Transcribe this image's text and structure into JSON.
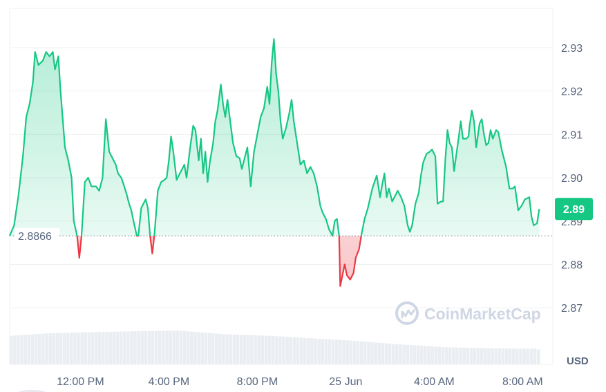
{
  "colors": {
    "up": "#16c784",
    "down": "#ea3943",
    "grid": "#eff2f5",
    "axis_text": "#58667e",
    "badge_bg": "#16c784",
    "volume": "#eaedf1",
    "watermark": "#cfd6e4"
  },
  "watermark": {
    "text": "CoinMarketCap",
    "icon": "coinmarketcap-logo-icon"
  },
  "currency_label": "USD",
  "baseline": {
    "label": "2.8866",
    "value": 2.8866
  },
  "current_price": {
    "label": "2.89",
    "value": 2.8928
  },
  "chart_data": {
    "type": "area",
    "title": "",
    "xlabel": "",
    "ylabel": "",
    "ylim": [
      2.8625,
      2.9375
    ],
    "y_ticks": [
      {
        "value": 2.93,
        "label": "2.93"
      },
      {
        "value": 2.92,
        "label": "2.92"
      },
      {
        "value": 2.91,
        "label": "2.91"
      },
      {
        "value": 2.9,
        "label": "2.90"
      },
      {
        "value": 2.89,
        "label": "2.89"
      },
      {
        "value": 2.88,
        "label": "2.88"
      },
      {
        "value": 2.87,
        "label": "2.87"
      }
    ],
    "x_ticks": [
      {
        "label": "12:00 PM",
        "hour": 12
      },
      {
        "label": "4:00 PM",
        "hour": 16
      },
      {
        "label": "8:00 PM",
        "hour": 20
      },
      {
        "label": "25 Jun",
        "hour": 24
      },
      {
        "label": "4:00 AM",
        "hour": 28
      },
      {
        "label": "8:00 AM",
        "hour": 32
      }
    ],
    "x_domain_hours": [
      8.8,
      33.3
    ],
    "grid": "horizontal",
    "series": [
      {
        "points": [
          [
            8.8,
            2.8866
          ],
          [
            9.0,
            2.889
          ],
          [
            9.2,
            2.896
          ],
          [
            9.4,
            2.905
          ],
          [
            9.55,
            2.914
          ],
          [
            9.7,
            2.917
          ],
          [
            9.85,
            2.922
          ],
          [
            9.95,
            2.929
          ],
          [
            10.1,
            2.926
          ],
          [
            10.3,
            2.927
          ],
          [
            10.45,
            2.929
          ],
          [
            10.6,
            2.928
          ],
          [
            10.75,
            2.929
          ],
          [
            10.85,
            2.925
          ],
          [
            11.0,
            2.928
          ],
          [
            11.1,
            2.92
          ],
          [
            11.3,
            2.907
          ],
          [
            11.45,
            2.904
          ],
          [
            11.6,
            2.9
          ],
          [
            11.7,
            2.89
          ],
          [
            11.85,
            2.8866
          ],
          [
            11.95,
            2.8815
          ],
          [
            12.05,
            2.8866
          ],
          [
            12.2,
            2.899
          ],
          [
            12.35,
            2.9
          ],
          [
            12.5,
            2.898
          ],
          [
            12.7,
            2.898
          ],
          [
            12.85,
            2.897
          ],
          [
            13.0,
            2.9
          ],
          [
            13.15,
            2.9135
          ],
          [
            13.3,
            2.906
          ],
          [
            13.45,
            2.9045
          ],
          [
            13.6,
            2.903
          ],
          [
            13.7,
            2.901
          ],
          [
            13.85,
            2.9
          ],
          [
            13.95,
            2.8985
          ],
          [
            14.1,
            2.896
          ],
          [
            14.2,
            2.894
          ],
          [
            14.3,
            2.8925
          ],
          [
            14.4,
            2.89
          ],
          [
            14.55,
            2.8866
          ],
          [
            14.62,
            2.8866
          ],
          [
            14.75,
            2.893
          ],
          [
            14.95,
            2.895
          ],
          [
            15.05,
            2.893
          ],
          [
            15.15,
            2.8866
          ],
          [
            15.25,
            2.8825
          ],
          [
            15.35,
            2.887
          ],
          [
            15.5,
            2.897
          ],
          [
            15.65,
            2.899
          ],
          [
            15.8,
            2.8995
          ],
          [
            15.9,
            2.9
          ],
          [
            16.0,
            2.904
          ],
          [
            16.1,
            2.9095
          ],
          [
            16.2,
            2.906
          ],
          [
            16.35,
            2.8995
          ],
          [
            16.5,
            2.901
          ],
          [
            16.7,
            2.903
          ],
          [
            16.8,
            2.9
          ],
          [
            16.95,
            2.9065
          ],
          [
            17.1,
            2.912
          ],
          [
            17.2,
            2.911
          ],
          [
            17.35,
            2.904
          ],
          [
            17.45,
            2.909
          ],
          [
            17.55,
            2.901
          ],
          [
            17.65,
            2.906
          ],
          [
            17.75,
            2.899
          ],
          [
            17.85,
            2.9035
          ],
          [
            18.0,
            2.908
          ],
          [
            18.1,
            2.913
          ],
          [
            18.2,
            2.9155
          ],
          [
            18.35,
            2.9215
          ],
          [
            18.45,
            2.917
          ],
          [
            18.55,
            2.914
          ],
          [
            18.65,
            2.918
          ],
          [
            18.75,
            2.914
          ],
          [
            18.9,
            2.908
          ],
          [
            19.05,
            2.905
          ],
          [
            19.2,
            2.9045
          ],
          [
            19.3,
            2.902
          ],
          [
            19.45,
            2.905
          ],
          [
            19.55,
            2.907
          ],
          [
            19.7,
            2.898
          ],
          [
            19.85,
            2.906
          ],
          [
            20.0,
            2.91
          ],
          [
            20.15,
            2.914
          ],
          [
            20.3,
            2.916
          ],
          [
            20.45,
            2.921
          ],
          [
            20.55,
            2.917
          ],
          [
            20.65,
            2.9265
          ],
          [
            20.75,
            2.932
          ],
          [
            20.85,
            2.924
          ],
          [
            20.95,
            2.92
          ],
          [
            21.05,
            2.913
          ],
          [
            21.15,
            2.909
          ],
          [
            21.3,
            2.9115
          ],
          [
            21.45,
            2.915
          ],
          [
            21.55,
            2.918
          ],
          [
            21.65,
            2.913
          ],
          [
            21.8,
            2.908
          ],
          [
            21.95,
            2.903
          ],
          [
            22.1,
            2.904
          ],
          [
            22.25,
            2.901
          ],
          [
            22.4,
            2.9025
          ],
          [
            22.55,
            2.901
          ],
          [
            22.7,
            2.898
          ],
          [
            22.85,
            2.8935
          ],
          [
            22.95,
            2.892
          ],
          [
            23.1,
            2.8905
          ],
          [
            23.25,
            2.888
          ],
          [
            23.4,
            2.8866
          ],
          [
            23.5,
            2.89
          ],
          [
            23.6,
            2.8905
          ],
          [
            23.7,
            2.8866
          ],
          [
            23.75,
            2.875
          ],
          [
            23.85,
            2.8775
          ],
          [
            23.95,
            2.88
          ],
          [
            24.05,
            2.8775
          ],
          [
            24.2,
            2.8765
          ],
          [
            24.35,
            2.878
          ],
          [
            24.45,
            2.8815
          ],
          [
            24.6,
            2.8835
          ],
          [
            24.7,
            2.8866
          ],
          [
            24.85,
            2.8905
          ],
          [
            25.0,
            2.893
          ],
          [
            25.2,
            2.8975
          ],
          [
            25.3,
            2.899
          ],
          [
            25.4,
            2.9005
          ],
          [
            25.55,
            2.8955
          ],
          [
            25.65,
            2.8985
          ],
          [
            25.75,
            2.901
          ],
          [
            25.85,
            2.8955
          ],
          [
            25.95,
            2.8975
          ],
          [
            26.1,
            2.8945
          ],
          [
            26.2,
            2.8955
          ],
          [
            26.35,
            2.897
          ],
          [
            26.5,
            2.8955
          ],
          [
            26.65,
            2.8935
          ],
          [
            26.8,
            2.889
          ],
          [
            26.9,
            2.8875
          ],
          [
            27.0,
            2.889
          ],
          [
            27.15,
            2.894
          ],
          [
            27.3,
            2.8965
          ],
          [
            27.4,
            2.9005
          ],
          [
            27.5,
            2.9035
          ],
          [
            27.65,
            2.9055
          ],
          [
            27.8,
            2.906
          ],
          [
            27.9,
            2.9065
          ],
          [
            28.0,
            2.9055
          ],
          [
            28.05,
            2.905
          ],
          [
            28.15,
            2.894
          ],
          [
            28.3,
            2.8945
          ],
          [
            28.4,
            2.8945
          ],
          [
            28.5,
            2.904
          ],
          [
            28.6,
            2.911
          ],
          [
            28.7,
            2.908
          ],
          [
            28.8,
            2.907
          ],
          [
            28.9,
            2.9015
          ],
          [
            28.95,
            2.9035
          ],
          [
            29.1,
            2.909
          ],
          [
            29.2,
            2.913
          ],
          [
            29.3,
            2.909
          ],
          [
            29.45,
            2.909
          ],
          [
            29.55,
            2.9095
          ],
          [
            29.6,
            2.912
          ],
          [
            29.7,
            2.9155
          ],
          [
            29.8,
            2.913
          ],
          [
            29.9,
            2.907
          ],
          [
            30.05,
            2.9125
          ],
          [
            30.15,
            2.9135
          ],
          [
            30.25,
            2.91
          ],
          [
            30.35,
            2.9075
          ],
          [
            30.45,
            2.908
          ],
          [
            30.55,
            2.911
          ],
          [
            30.65,
            2.909
          ],
          [
            30.8,
            2.911
          ],
          [
            30.9,
            2.9105
          ],
          [
            31.05,
            2.9065
          ],
          [
            31.25,
            2.9025
          ],
          [
            31.4,
            2.8975
          ],
          [
            31.55,
            2.8975
          ],
          [
            31.65,
            2.898
          ],
          [
            31.8,
            2.8925
          ],
          [
            31.95,
            2.8935
          ],
          [
            32.1,
            2.895
          ],
          [
            32.3,
            2.8955
          ],
          [
            32.4,
            2.891
          ],
          [
            32.5,
            2.889
          ],
          [
            32.65,
            2.8895
          ],
          [
            32.75,
            2.8928
          ]
        ]
      }
    ],
    "volume": [
      [
        8.8,
        0.55
      ],
      [
        10.5,
        0.6
      ],
      [
        12.5,
        0.62
      ],
      [
        14.5,
        0.64
      ],
      [
        16.5,
        0.65
      ],
      [
        17.0,
        0.63
      ],
      [
        18.5,
        0.58
      ],
      [
        20.5,
        0.55
      ],
      [
        22.5,
        0.5
      ],
      [
        24.5,
        0.45
      ],
      [
        26.5,
        0.38
      ],
      [
        28.5,
        0.33
      ],
      [
        30.5,
        0.31
      ],
      [
        32.5,
        0.3
      ],
      [
        32.75,
        0.28
      ]
    ]
  }
}
